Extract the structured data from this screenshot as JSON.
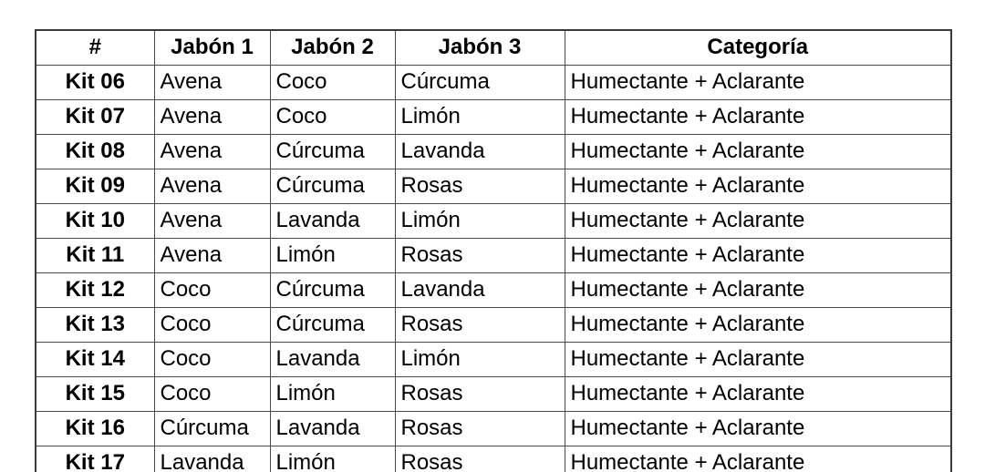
{
  "table": {
    "headers": [
      "#",
      "Jabón 1",
      "Jabón 2",
      "Jabón 3",
      "Categoría"
    ],
    "rows": [
      [
        "Kit 06",
        "Avena",
        "Coco",
        "Cúrcuma",
        "Humectante + Aclarante"
      ],
      [
        "Kit 07",
        "Avena",
        "Coco",
        "Limón",
        "Humectante + Aclarante"
      ],
      [
        "Kit 08",
        "Avena",
        "Cúrcuma",
        "Lavanda",
        "Humectante + Aclarante"
      ],
      [
        "Kit 09",
        "Avena",
        "Cúrcuma",
        "Rosas",
        "Humectante + Aclarante"
      ],
      [
        "Kit 10",
        "Avena",
        "Lavanda",
        "Limón",
        "Humectante + Aclarante"
      ],
      [
        "Kit 11",
        "Avena",
        "Limón",
        "Rosas",
        "Humectante + Aclarante"
      ],
      [
        "Kit 12",
        "Coco",
        "Cúrcuma",
        "Lavanda",
        "Humectante + Aclarante"
      ],
      [
        "Kit 13",
        "Coco",
        "Cúrcuma",
        "Rosas",
        "Humectante + Aclarante"
      ],
      [
        "Kit 14",
        "Coco",
        "Lavanda",
        "Limón",
        "Humectante + Aclarante"
      ],
      [
        "Kit 15",
        "Coco",
        "Limón",
        "Rosas",
        "Humectante + Aclarante"
      ],
      [
        "Kit 16",
        "Cúrcuma",
        "Lavanda",
        "Rosas",
        "Humectante + Aclarante"
      ],
      [
        "Kit 17",
        "Lavanda",
        "Limón",
        "Rosas",
        "Humectante + Aclarante"
      ]
    ],
    "colors": {
      "border_inner": "#4a4a4a",
      "border_outer": "#3a3a3a",
      "background": "#ffffff",
      "text": "#000000"
    }
  }
}
